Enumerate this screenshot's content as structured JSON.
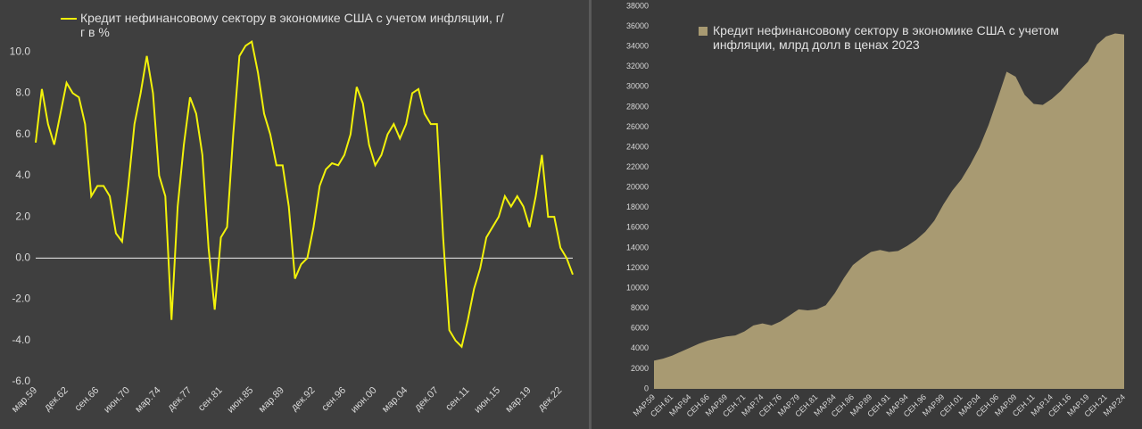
{
  "chart_data": [
    {
      "type": "line",
      "series": [
        {
          "name": "Кредит нефинансовому сектору в экономике США с учетом инфляции, г/г в %",
          "color": "#f2f20a",
          "values": [
            5.6,
            8.2,
            6.5,
            5.5,
            7.0,
            8.5,
            8.0,
            7.8,
            6.5,
            3.0,
            3.5,
            3.5,
            3.0,
            1.2,
            0.8,
            3.5,
            6.5,
            8.0,
            9.8,
            8.0,
            4.0,
            3.0,
            -3.0,
            2.5,
            5.5,
            7.8,
            7.0,
            5.0,
            0.5,
            -2.5,
            1.0,
            1.5,
            6.0,
            9.8,
            10.3,
            10.5,
            9.0,
            7.0,
            6.0,
            4.5,
            4.5,
            2.5,
            -1.0,
            -0.3,
            0.0,
            1.5,
            3.5,
            4.3,
            4.6,
            4.5,
            5.0,
            6.0,
            8.3,
            7.5,
            5.5,
            4.5,
            5.0,
            6.0,
            6.5,
            5.8,
            6.5,
            8.0,
            8.2,
            7.0,
            6.5,
            6.5,
            1.0,
            -3.5,
            -4.0,
            -4.3,
            -3.0,
            -1.5,
            -0.5,
            1.0,
            1.5,
            2.0,
            3.0,
            2.5,
            3.0,
            2.5,
            1.5,
            3.0,
            5.0,
            2.0,
            2.0,
            0.5,
            0.0,
            -0.8
          ]
        }
      ],
      "categories": [
        "мар.59",
        null,
        null,
        null,
        null,
        "дек.62",
        null,
        null,
        null,
        null,
        "сен.66",
        null,
        null,
        null,
        null,
        "июн.70",
        null,
        null,
        null,
        null,
        "мар.74",
        null,
        null,
        null,
        null,
        "дек.77",
        null,
        null,
        null,
        null,
        "сен.81",
        null,
        null,
        null,
        null,
        "июн.85",
        null,
        null,
        null,
        null,
        "мар.89",
        null,
        null,
        null,
        null,
        "дек.92",
        null,
        null,
        null,
        null,
        "сен.96",
        null,
        null,
        null,
        null,
        "июн.00",
        null,
        null,
        null,
        null,
        "мар.04",
        null,
        null,
        null,
        null,
        "дек.07",
        null,
        null,
        null,
        null,
        "сен.11",
        null,
        null,
        null,
        null,
        "июн.15",
        null,
        null,
        null,
        null,
        "мар.19",
        null,
        null,
        null,
        null,
        "дек.22",
        null,
        null
      ],
      "ylim": [
        -6,
        12
      ],
      "yticks": [
        {
          "value": -6,
          "label": "-6.0"
        },
        {
          "value": -4,
          "label": "-4.0"
        },
        {
          "value": -2,
          "label": "-2.0"
        },
        {
          "value": 0,
          "label": "0.0"
        },
        {
          "value": 2,
          "label": "2.0"
        },
        {
          "value": 4,
          "label": "4.0"
        },
        {
          "value": 6,
          "label": "6.0"
        },
        {
          "value": 8,
          "label": "8.0"
        },
        {
          "value": 10,
          "label": "10.0"
        }
      ],
      "zero_line": true,
      "grid": false
    },
    {
      "type": "area",
      "series": [
        {
          "name": "Кредит нефинансовому сектору в экономике США с учетом инфляции, млрд долл в ценах 2023",
          "color": "#a89a72",
          "values": [
            2800,
            3000,
            3300,
            3700,
            4100,
            4500,
            4800,
            5000,
            5200,
            5300,
            5700,
            6300,
            6500,
            6300,
            6700,
            7300,
            7900,
            7800,
            7900,
            8300,
            9500,
            11000,
            12300,
            13000,
            13600,
            13800,
            13600,
            13700,
            14200,
            14800,
            15600,
            16700,
            18300,
            19700,
            20800,
            22300,
            24000,
            26200,
            28800,
            31500,
            31000,
            29200,
            28300,
            28200,
            28800,
            29600,
            30600,
            31600,
            32500,
            34200,
            35000,
            35300,
            35200
          ]
        }
      ],
      "categories": [
        "МАР.59",
        null,
        "СЕН.61",
        null,
        "МАР.64",
        null,
        "СЕН.66",
        null,
        "МАР.69",
        null,
        "СЕН.71",
        null,
        "МАР.74",
        null,
        "СЕН.76",
        null,
        "МАР.79",
        null,
        "СЕН.81",
        null,
        "МАР.84",
        null,
        "СЕН.86",
        null,
        "МАР.89",
        null,
        "СЕН.91",
        null,
        "МАР.94",
        null,
        "СЕН.96",
        null,
        "МАР.99",
        null,
        "СЕН.01",
        null,
        "МАР.04",
        null,
        "СЕН.06",
        null,
        "МАР.09",
        null,
        "СЕН.11",
        null,
        "МАР.14",
        null,
        "СЕН.16",
        null,
        "МАР.19",
        null,
        "СЕН.21",
        null,
        "МАР.24"
      ],
      "ylim": [
        0,
        38000
      ],
      "yticks": [
        0,
        2000,
        4000,
        6000,
        8000,
        10000,
        12000,
        14000,
        16000,
        18000,
        20000,
        22000,
        24000,
        26000,
        28000,
        30000,
        32000,
        34000,
        36000,
        38000
      ],
      "zero_line": false,
      "grid": false
    }
  ]
}
